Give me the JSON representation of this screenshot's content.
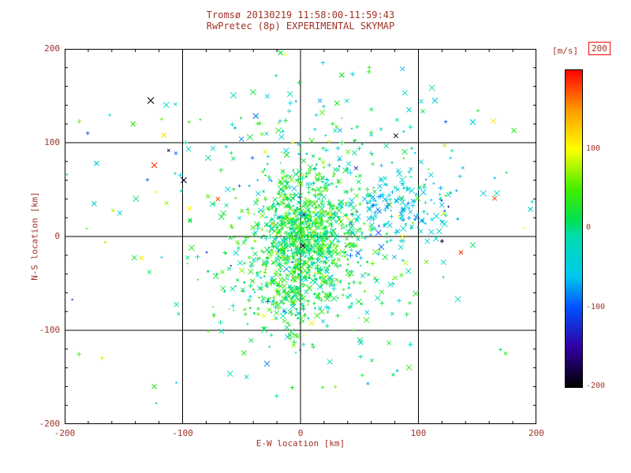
{
  "colors": {
    "text": "#a03327",
    "axis": "#000000",
    "background": "#ffffff",
    "colorbar_box_border": "#ff0000"
  },
  "title": {
    "line1": "Tromsø 20130219 11:58:00-11:59:43",
    "line2": "RwPretec (8p) EXPERIMENTAL SKYMAP"
  },
  "axes": {
    "xlabel": "E-W location [km]",
    "ylabel": "N-S location [km]",
    "xticklabels": [
      "-200",
      "-100",
      "0",
      "100",
      "200"
    ],
    "yticklabels": [
      "-200",
      "-100",
      "0",
      "100",
      "200"
    ]
  },
  "colorbar": {
    "unit": "[m/s]",
    "max_label": "200",
    "side_ticks": [
      {
        "v": 100,
        "label": "100"
      },
      {
        "v": 0,
        "label": "0"
      },
      {
        "v": -100,
        "label": "-100"
      },
      {
        "v": -200,
        "label": "-200"
      }
    ]
  },
  "chart_data": {
    "type": "scatter",
    "title": "Tromsø 20130219 11:58:00-11:59:43 / RwPretec (8p) EXPERIMENTAL SKYMAP",
    "xlabel": "E-W location [km]",
    "ylabel": "N-S location [km]",
    "xlim": [
      -200,
      200
    ],
    "ylim": [
      -200,
      200
    ],
    "vlim": [
      -200,
      200
    ],
    "x_ticks": [
      -200,
      -100,
      0,
      100,
      200
    ],
    "y_ticks": [
      -200,
      -100,
      0,
      100,
      200
    ],
    "grid_lines": [
      -100,
      0,
      100
    ],
    "minor_tick_step": 20,
    "major_tick_step": 100,
    "grid": true,
    "legend_position": "right-colorbar",
    "color_stops": [
      {
        "v": 200,
        "c": "#ff0000"
      },
      {
        "v": 150,
        "c": "#ff9900"
      },
      {
        "v": 100,
        "c": "#ffff00"
      },
      {
        "v": 50,
        "c": "#44ee00"
      },
      {
        "v": 10,
        "c": "#00e050"
      },
      {
        "v": -10,
        "c": "#00ddb0"
      },
      {
        "v": -60,
        "c": "#00c8ee"
      },
      {
        "v": -100,
        "c": "#0050ff"
      },
      {
        "v": -150,
        "c": "#3000a0"
      },
      {
        "v": -200,
        "c": "#000000"
      }
    ],
    "seed": 42,
    "clusters": [
      {
        "name": "core-dense",
        "count": 650,
        "cx": 4,
        "cy": 4,
        "sx": 20,
        "sy": 30,
        "vmean": 22,
        "vsd": 28
      },
      {
        "name": "core-halo",
        "count": 300,
        "cx": 2,
        "cy": -5,
        "sx": 42,
        "sy": 48,
        "vmean": 8,
        "vsd": 40
      },
      {
        "name": "south-lobe",
        "count": 200,
        "cx": -8,
        "cy": -58,
        "sx": 26,
        "sy": 24,
        "vmean": 18,
        "vsd": 26
      },
      {
        "name": "east-cyan-patch",
        "count": 140,
        "cx": 82,
        "cy": 32,
        "sx": 26,
        "sy": 18,
        "vmean": -52,
        "vsd": 22
      },
      {
        "name": "north-sparse",
        "count": 90,
        "cx": 20,
        "cy": 95,
        "sx": 55,
        "sy": 40,
        "vmean": -15,
        "vsd": 40
      },
      {
        "name": "background",
        "count": 160,
        "cx": 5,
        "cy": 5,
        "sx": 95,
        "sy": 80,
        "vmean": -5,
        "vsd": 50
      },
      {
        "name": "wide-field",
        "count": 50,
        "cx": 0,
        "cy": 0,
        "sx": 145,
        "sy": 115,
        "vmean": 0,
        "vsd": 70
      }
    ],
    "outliers": [
      {
        "x": -127,
        "y": 145,
        "v": -195,
        "m": "x",
        "s": 4
      },
      {
        "x": -124,
        "y": 76,
        "v": 185,
        "m": "x",
        "s": 3.5
      },
      {
        "x": -99,
        "y": 60,
        "v": -190,
        "m": "x",
        "s": 3.5
      },
      {
        "x": -116,
        "y": 108,
        "v": 115,
        "m": "x",
        "s": 3
      },
      {
        "x": -173,
        "y": 78,
        "v": -45,
        "m": "x",
        "s": 3
      },
      {
        "x": -142,
        "y": 120,
        "v": 40,
        "m": "x",
        "s": 3
      },
      {
        "x": -70,
        "y": 40,
        "v": 175,
        "m": "x",
        "s": 2.5
      },
      {
        "x": -94,
        "y": 30,
        "v": 105,
        "m": "x",
        "s": 2.5
      },
      {
        "x": -135,
        "y": -23,
        "v": 110,
        "m": "x",
        "s": 2.5
      },
      {
        "x": 146,
        "y": 122,
        "v": -50,
        "m": "x",
        "s": 3.5
      },
      {
        "x": 114,
        "y": 145,
        "v": -55,
        "m": "x",
        "s": 3.5
      },
      {
        "x": 31,
        "y": 142,
        "v": 30,
        "m": "x",
        "s": 3
      },
      {
        "x": 92,
        "y": 135,
        "v": -40,
        "m": "x",
        "s": 3
      },
      {
        "x": 136,
        "y": -17,
        "v": 180,
        "m": "x",
        "s": 2.5
      },
      {
        "x": 120,
        "y": -5,
        "v": -185,
        "m": "+",
        "s": 2.5
      },
      {
        "x": -7,
        "y": -161,
        "v": 25,
        "m": "+",
        "s": 2.5
      },
      {
        "x": -48,
        "y": -124,
        "v": 35,
        "m": "x",
        "s": 3
      },
      {
        "x": 51,
        "y": -113,
        "v": -45,
        "m": "x",
        "s": 3
      },
      {
        "x": 181,
        "y": 113,
        "v": 35,
        "m": "x",
        "s": 3
      },
      {
        "x": 195,
        "y": 29,
        "v": -50,
        "m": "x",
        "s": 3
      },
      {
        "x": -1,
        "y": 164,
        "v": 20,
        "m": "+",
        "s": 3
      },
      {
        "x": 35,
        "y": 172,
        "v": 25,
        "m": "x",
        "s": 3
      },
      {
        "x": 2,
        "y": -10,
        "v": -190,
        "m": "x",
        "s": 2.5
      },
      {
        "x": -17,
        "y": 196,
        "v": 15,
        "m": "x",
        "s": 3
      },
      {
        "x": -124,
        "y": -160,
        "v": 30,
        "m": "x",
        "s": 3
      },
      {
        "x": -175,
        "y": 35,
        "v": -35,
        "m": "x",
        "s": 3
      }
    ]
  }
}
